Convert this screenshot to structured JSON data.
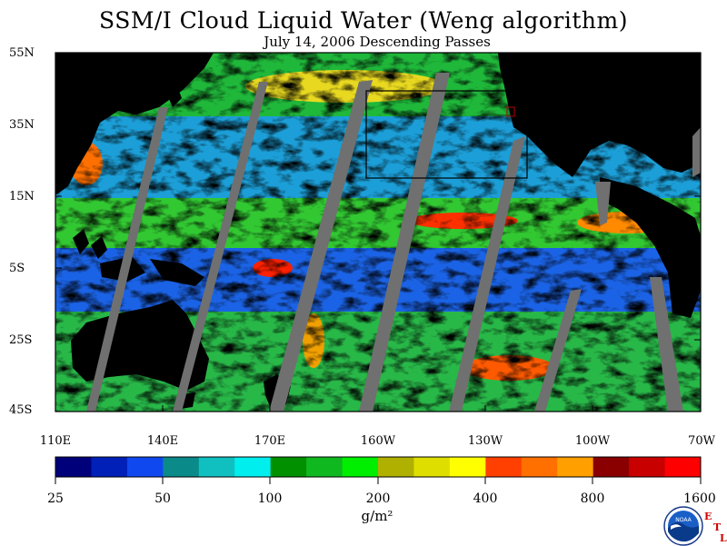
{
  "header": {
    "title": "SSM/I Cloud Liquid Water (Weng algorithm)",
    "subtitle": "July 14, 2006  Descending Passes"
  },
  "map": {
    "latitude_labels": [
      "55N",
      "35N",
      "15N",
      "5S",
      "25S",
      "45S"
    ],
    "longitude_labels": [
      "110E",
      "140E",
      "170E",
      "160W",
      "130W",
      "100W",
      "70W"
    ],
    "colors": {
      "land": "#000000",
      "no_data_swath_gap": "#707070",
      "clear": "#ffffff"
    }
  },
  "colorbar": {
    "colors": [
      "#00007a",
      "#0020b8",
      "#1048f0",
      "#0b8a8a",
      "#10c0c0",
      "#00eeee",
      "#009000",
      "#10b820",
      "#00ee00",
      "#b0b000",
      "#dede00",
      "#ffff00",
      "#ff4000",
      "#ff7000",
      "#ffa000",
      "#8a0000",
      "#c80000",
      "#ff0000"
    ],
    "labels": [
      "25",
      "50",
      "100",
      "200",
      "400",
      "800",
      "1600"
    ],
    "units": "g/m²"
  },
  "footer": {
    "logo_text": "NOAA",
    "lab_letters": [
      "E",
      "T",
      "L"
    ]
  }
}
